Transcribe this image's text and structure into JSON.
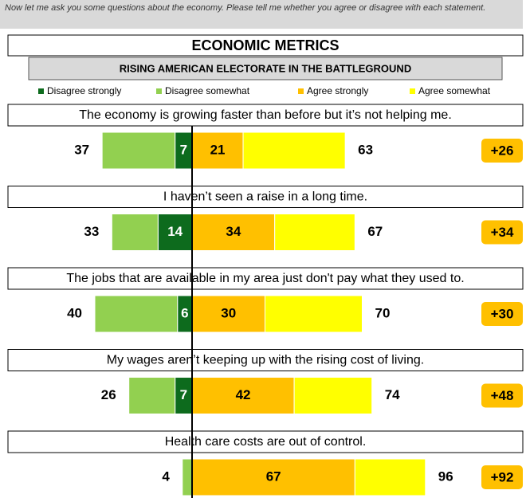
{
  "chart_data": {
    "type": "diverging_bar",
    "question": "Now let me ask you some questions about the economy. Please tell me whether you agree or disagree with each statement.",
    "title": "ECONOMIC METRICS",
    "subtitle": "RISING AMERICAN ELECTORATE IN THE BATTLEGROUND",
    "categories": [
      "The economy is growing faster than before but it’s not helping me.",
      "I haven’t seen a raise in a long time.",
      "The jobs that are available in my area just don't pay what they used to.",
      "My wages aren’t keeping up with the rising cost of living.",
      "Health care costs are out of control."
    ],
    "series": [
      {
        "name": "Disagree strongly",
        "color": "#0d6b1d",
        "side": "disagree",
        "values": [
          7,
          14,
          6,
          7,
          null
        ]
      },
      {
        "name": "Disagree somewhat",
        "color": "#92d050",
        "side": "disagree",
        "values": [
          30,
          19,
          34,
          19,
          4
        ]
      },
      {
        "name": "Agree strongly",
        "color": "#ffc000",
        "side": "agree",
        "values": [
          21,
          34,
          30,
          42,
          67
        ]
      },
      {
        "name": "Agree somewhat",
        "color": "#ffff00",
        "side": "agree",
        "values": [
          42,
          33,
          40,
          32,
          29
        ]
      }
    ],
    "disagree_totals": [
      37,
      33,
      40,
      26,
      4
    ],
    "agree_totals": [
      63,
      67,
      70,
      74,
      96
    ],
    "net": [
      26,
      34,
      30,
      48,
      92
    ],
    "net_labels": [
      "+26",
      "+34",
      "+30",
      "+48",
      "+92"
    ],
    "net_color": "#ffc000"
  }
}
